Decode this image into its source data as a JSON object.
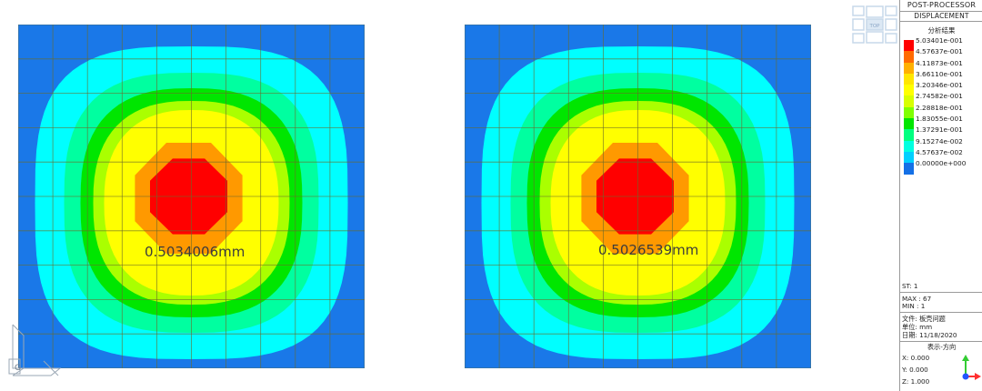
{
  "plots": [
    {
      "value_label": "0.5034006mm"
    },
    {
      "value_label": "0.5026539mm"
    }
  ],
  "view_cube": {
    "face_label": "TOP"
  },
  "axis_triad": {
    "label": "G"
  },
  "panel": {
    "header1": "POST-PROCESSOR",
    "header2": "DISPLACEMENT",
    "legend_title": "分析结果",
    "legend": [
      {
        "value": "5.03401e-001",
        "color": "#ff0000"
      },
      {
        "value": "4.57637e-001",
        "color": "#ff6a00"
      },
      {
        "value": "4.11873e-001",
        "color": "#ffb000"
      },
      {
        "value": "3.66110e-001",
        "color": "#ffe600"
      },
      {
        "value": "3.20346e-001",
        "color": "#ffff00"
      },
      {
        "value": "2.74582e-001",
        "color": "#d8ff00"
      },
      {
        "value": "2.28818e-001",
        "color": "#80ff00"
      },
      {
        "value": "1.83055e-001",
        "color": "#00e600"
      },
      {
        "value": "1.37291e-001",
        "color": "#00ff80"
      },
      {
        "value": "9.15274e-002",
        "color": "#00ffe0"
      },
      {
        "value": "4.57637e-002",
        "color": "#00d0ff"
      },
      {
        "value": "0.00000e+000",
        "color": "#1470e6"
      }
    ],
    "st": "ST: 1",
    "max": "MAX : 67",
    "min": "MIN : 1",
    "file": "文件: 板壳问题",
    "unit": "单位: mm",
    "date": "日期: 11/18/2020",
    "view_dir_title": "表示-方向",
    "x": "X: 0.000",
    "y": "Y: 0.000",
    "z": "Z: 1.000",
    "colors": {
      "x": "#ff5050",
      "y": "#33cc33",
      "z": "#3355ff"
    }
  },
  "contour_colors": {
    "blue": "#1a78e8",
    "cyan": "#00ffff",
    "aqua_green": "#00ffa0",
    "green": "#00e600",
    "yellow_green": "#aaff00",
    "yellow": "#ffff00",
    "orange": "#ff9900",
    "red": "#ff0000"
  }
}
